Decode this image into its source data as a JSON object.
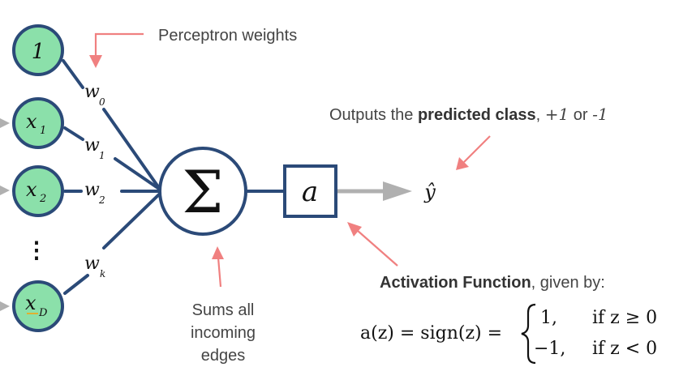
{
  "inputs": [
    {
      "base": "1",
      "sub": ""
    },
    {
      "base": "x",
      "sub": "1"
    },
    {
      "base": "x",
      "sub": "2"
    },
    {
      "base": "x",
      "sub": "D"
    }
  ],
  "vertical_ellipsis": "⋮",
  "weights": [
    {
      "base": "w",
      "sub": "0"
    },
    {
      "base": "w",
      "sub": "1"
    },
    {
      "base": "w",
      "sub": "2"
    },
    {
      "base": "w",
      "sub": "k"
    }
  ],
  "sum_symbol": "Σ",
  "activation_symbol": "a",
  "output_symbol": "ŷ",
  "annotations": {
    "perceptron_weights": "Perceptron weights",
    "outputs_prefix": "Outputs the ",
    "outputs_bold": "predicted class",
    "outputs_mid": ", ",
    "outputs_plus": "+1",
    "outputs_or": " or ",
    "outputs_minus": "-1",
    "sums_line1": "Sums all",
    "sums_line2": "incoming",
    "sums_line3": "edges",
    "activation_bold": "Activation Function",
    "activation_rest": ", given by:"
  },
  "formula": {
    "lhs": "a(z) = sign(z) =",
    "case1_value": "1,",
    "case1_condition": "if z ≥ 0",
    "case2_value": "−1,",
    "case2_condition": "if z < 0"
  },
  "colors": {
    "node_fill": "#8be0aa",
    "edge": "#2b4a78",
    "annotation_arrow": "#f08080",
    "output_arrow": "#b0b0b0"
  }
}
